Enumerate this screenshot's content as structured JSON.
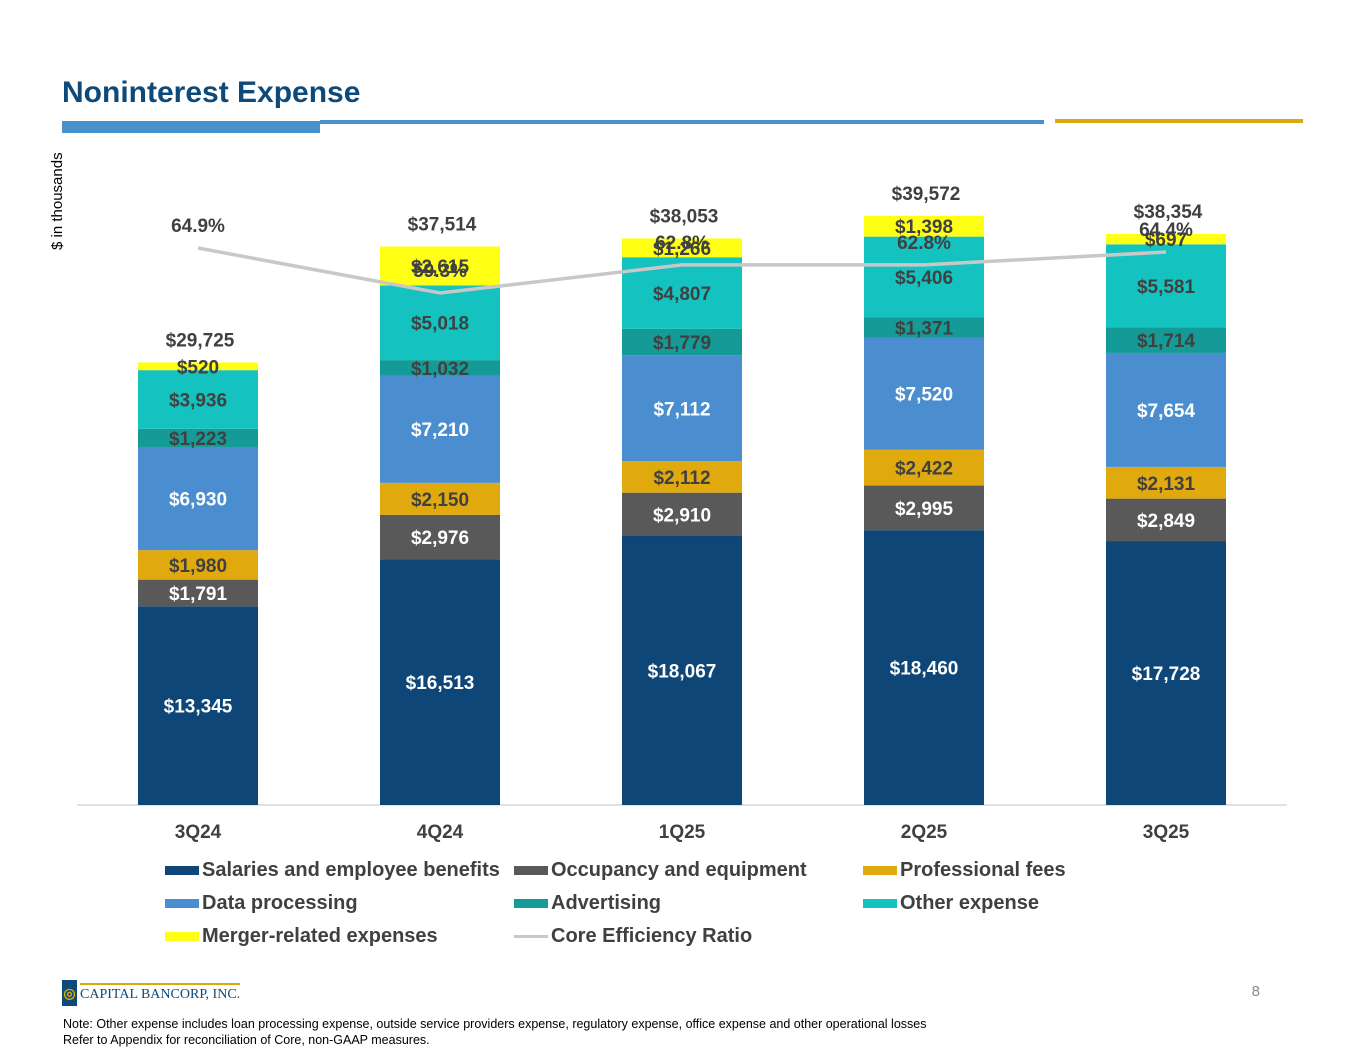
{
  "page": {
    "title": "Noninterest Expense",
    "y_unit_label": "$ in thousands",
    "page_number": "8",
    "logo_text": "CAPITAL BANCORP, INC.",
    "notes": [
      "Note: Other expense includes loan processing expense, outside service providers expense, regulatory expense, office expense and other operational losses",
      "Refer to Appendix for reconciliation of Core, non-GAAP measures."
    ]
  },
  "chart_data": {
    "type": "bar",
    "stacked": true,
    "categories": [
      "3Q24",
      "4Q24",
      "1Q25",
      "2Q25",
      "3Q25"
    ],
    "series": [
      {
        "name": "Salaries and employee benefits",
        "color": "#0d4677",
        "label_color": "#ffffff",
        "values": [
          13345,
          16513,
          18067,
          18460,
          17728
        ],
        "labels": [
          "$13,345",
          "$16,513",
          "$18,067",
          "$18,460",
          "$17,728"
        ]
      },
      {
        "name": "Occupancy and equipment",
        "color": "#595959",
        "label_color": "#ffffff",
        "values": [
          1791,
          2976,
          2910,
          2995,
          2849
        ],
        "labels": [
          "$1,791",
          "$2,976",
          "$2,910",
          "$2,995",
          "$2,849"
        ]
      },
      {
        "name": "Professional fees",
        "color": "#e0aa0f",
        "label_color": "#404040",
        "values": [
          1980,
          2150,
          2112,
          2422,
          2131
        ],
        "labels": [
          "$1,980",
          "$2,150",
          "$2,112",
          "$2,422",
          "$2,131"
        ]
      },
      {
        "name": "Data processing",
        "color": "#4a8ed0",
        "label_color": "#ffffff",
        "values": [
          6930,
          7210,
          7112,
          7520,
          7654
        ],
        "labels": [
          "$6,930",
          "$7,210",
          "$7,112",
          "$7,520",
          "$7,654"
        ]
      },
      {
        "name": "Advertising",
        "color": "#149b97",
        "label_color": "#404040",
        "values": [
          1223,
          1032,
          1779,
          1371,
          1714
        ],
        "labels": [
          "$1,223",
          "$1,032",
          "$1,779",
          "$1,371",
          "$1,714"
        ]
      },
      {
        "name": "Other expense",
        "color": "#14c2bf",
        "label_color": "#404040",
        "values": [
          3936,
          5018,
          4807,
          5406,
          5581
        ],
        "labels": [
          "$3,936",
          "$5,018",
          "$4,807",
          "$5,406",
          "$5,581"
        ]
      },
      {
        "name": "Merger-related expenses",
        "color": "#ffff14",
        "label_color": "#404040",
        "values": [
          520,
          2615,
          1266,
          1398,
          697
        ],
        "labels": [
          "$520",
          "$2,615",
          "$1,266",
          "$1,398",
          "$697"
        ]
      }
    ],
    "totals": [
      29725,
      37514,
      38053,
      39572,
      38354
    ],
    "total_labels": [
      "$29,725",
      "$37,514",
      "$38,053",
      "$39,572",
      "$38,354"
    ],
    "line_series": {
      "name": "Core Efficiency Ratio",
      "color": "#c8c8c8",
      "values": [
        64.9,
        59.3,
        62.8,
        62.8,
        64.4
      ],
      "labels": [
        "64.9%",
        "59.3%",
        "62.8%",
        "62.8%",
        "64.4%"
      ],
      "ylim": [
        0,
        110
      ]
    },
    "ylim": [
      0,
      45000
    ],
    "legend": [
      {
        "label": "Salaries and employee benefits",
        "color": "#0d4677",
        "kind": "box"
      },
      {
        "label": "Occupancy and equipment",
        "color": "#595959",
        "kind": "box"
      },
      {
        "label": "Professional fees",
        "color": "#e0aa0f",
        "kind": "box"
      },
      {
        "label": "Data processing",
        "color": "#4a8ed0",
        "kind": "box"
      },
      {
        "label": "Advertising",
        "color": "#149b97",
        "kind": "box"
      },
      {
        "label": "Other expense",
        "color": "#14c2bf",
        "kind": "box"
      },
      {
        "label": "Merger-related expenses",
        "color": "#ffff14",
        "kind": "box"
      },
      {
        "label": "Core Efficiency Ratio",
        "color": "#c8c8c8",
        "kind": "line"
      }
    ],
    "legend_placement": "bottom",
    "grid": false
  }
}
